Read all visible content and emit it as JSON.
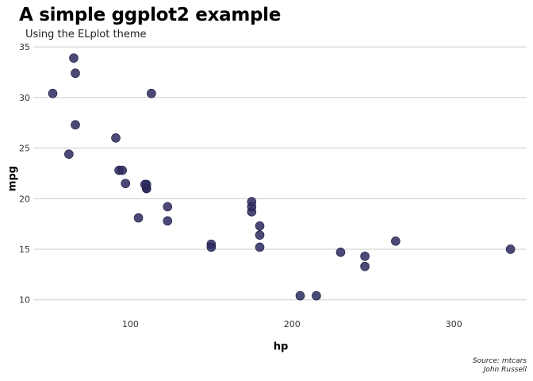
{
  "chart_data": {
    "type": "scatter",
    "title": "A simple ggplot2 example",
    "subtitle": "Using the ELplot theme",
    "xlabel": "hp",
    "ylabel": "mpg",
    "xlim": [
      40,
      345
    ],
    "ylim": [
      8.8,
      35.4
    ],
    "x_ticks": [
      100,
      200,
      300
    ],
    "y_ticks": [
      10,
      15,
      20,
      25,
      30,
      35
    ],
    "grid": {
      "horizontal": true,
      "vertical": false
    },
    "point_color": "#2c2a5e",
    "gridline_color": "#cccccc",
    "caption": [
      "Source: mtcars",
      "John Russell"
    ],
    "points": [
      {
        "x": 110,
        "y": 21.0
      },
      {
        "x": 110,
        "y": 21.0
      },
      {
        "x": 93,
        "y": 22.8
      },
      {
        "x": 110,
        "y": 21.4
      },
      {
        "x": 175,
        "y": 18.7
      },
      {
        "x": 105,
        "y": 18.1
      },
      {
        "x": 245,
        "y": 14.3
      },
      {
        "x": 62,
        "y": 24.4
      },
      {
        "x": 95,
        "y": 22.8
      },
      {
        "x": 123,
        "y": 19.2
      },
      {
        "x": 123,
        "y": 17.8
      },
      {
        "x": 180,
        "y": 16.4
      },
      {
        "x": 180,
        "y": 17.3
      },
      {
        "x": 180,
        "y": 15.2
      },
      {
        "x": 205,
        "y": 10.4
      },
      {
        "x": 215,
        "y": 10.4
      },
      {
        "x": 230,
        "y": 14.7
      },
      {
        "x": 66,
        "y": 32.4
      },
      {
        "x": 52,
        "y": 30.4
      },
      {
        "x": 65,
        "y": 33.9
      },
      {
        "x": 97,
        "y": 21.5
      },
      {
        "x": 150,
        "y": 15.5
      },
      {
        "x": 150,
        "y": 15.2
      },
      {
        "x": 245,
        "y": 13.3
      },
      {
        "x": 175,
        "y": 19.2
      },
      {
        "x": 66,
        "y": 27.3
      },
      {
        "x": 91,
        "y": 26.0
      },
      {
        "x": 113,
        "y": 30.4
      },
      {
        "x": 264,
        "y": 15.8
      },
      {
        "x": 175,
        "y": 19.7
      },
      {
        "x": 335,
        "y": 15.0
      },
      {
        "x": 109,
        "y": 21.4
      }
    ]
  }
}
